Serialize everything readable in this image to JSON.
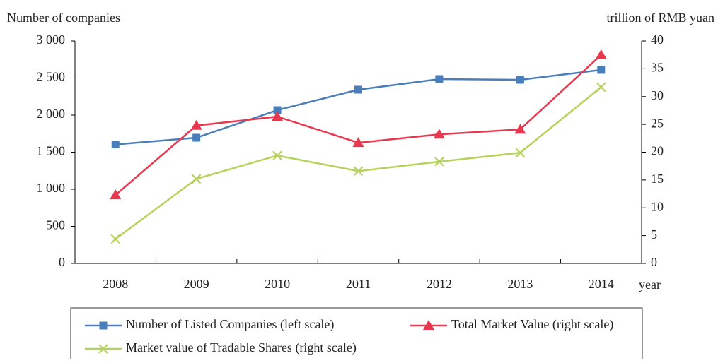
{
  "chart_data": {
    "type": "line",
    "y_label": "Number of companies",
    "y2_label": "trillion of RMB yuan",
    "x_label": "year",
    "categories": [
      "2008",
      "2009",
      "2010",
      "2011",
      "2012",
      "2013",
      "2014"
    ],
    "ylim": [
      0,
      3000
    ],
    "yticks": [
      0,
      500,
      {
        "value": 1000,
        "label": "1 000"
      },
      {
        "value": 1500,
        "label": "1 500"
      },
      {
        "value": 2000,
        "label": "2 000"
      },
      {
        "value": 2500,
        "label": "2 500"
      },
      {
        "value": 3000,
        "label": "3 000"
      }
    ],
    "y2lim": [
      0,
      40
    ],
    "y2ticks": [
      0,
      5,
      10,
      15,
      20,
      25,
      30,
      35,
      40
    ],
    "legend": "bottom",
    "series": [
      {
        "name": "Number of Listed Companies (left scale)",
        "color": "#4a7ebb",
        "marker": "square",
        "values": [
          1604,
          1695,
          2067,
          2343,
          2486,
          2476,
          2610
        ]
      },
      {
        "name": "Total Market Value (right scale)",
        "color": "#e8384f",
        "marker": "triangle",
        "axis": "y2",
        "values": [
          12.3,
          24.8,
          26.4,
          21.7,
          23.2,
          24.1,
          37.5
        ]
      },
      {
        "name": "Market value of Tradable Shares (right scale)",
        "color": "#b5d35a",
        "marker": "x",
        "axis": "y2",
        "values": [
          4.4,
          15.2,
          19.4,
          16.6,
          18.3,
          19.9,
          31.7
        ]
      }
    ]
  }
}
